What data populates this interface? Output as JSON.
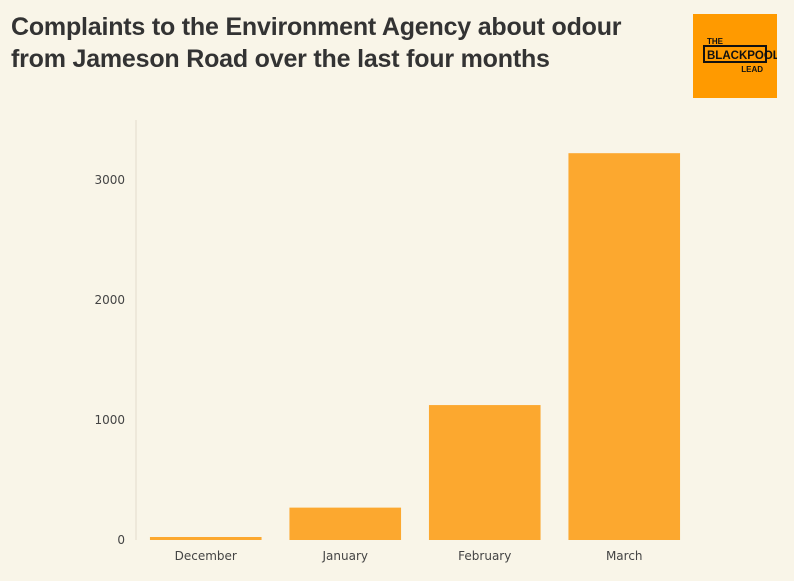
{
  "title": "Complaints to the Environment Agency about odour from Jameson Road over the last four months",
  "logo": {
    "line1": "THE",
    "line2": "BLACKPOOL",
    "line3": "LEAD",
    "bg_color": "#ff9a00"
  },
  "colors": {
    "bar": "#fca82f",
    "background": "#f9f5e8"
  },
  "chart_data": {
    "type": "bar",
    "categories": [
      "December",
      "January",
      "February",
      "March"
    ],
    "values": [
      25,
      270,
      1125,
      3225
    ],
    "yticks": [
      0,
      1000,
      2000,
      3000
    ],
    "ylim": [
      0,
      3500
    ],
    "grid": false,
    "title": "Complaints to the Environment Agency about odour from Jameson Road over the last four months",
    "xlabel": "",
    "ylabel": ""
  }
}
